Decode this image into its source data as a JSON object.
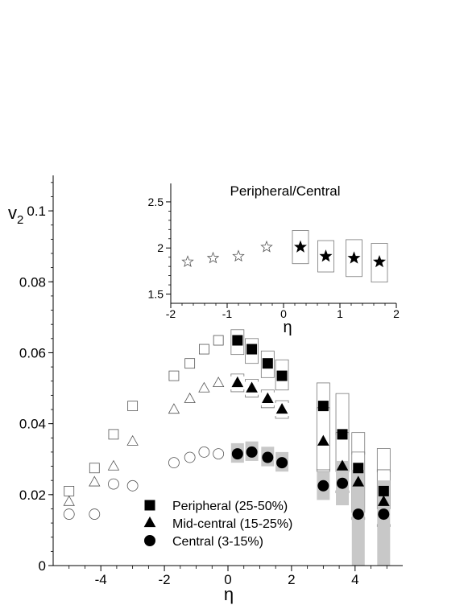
{
  "chart_data": {
    "main": {
      "type": "scatter",
      "xlabel": "η",
      "ylabel_base": "v",
      "ylabel_sub": "2",
      "xlim": [
        -5.5,
        5.5
      ],
      "ylim": [
        0,
        0.11
      ],
      "xticks": [
        -4,
        -2,
        0,
        2,
        4
      ],
      "xtick_labels": [
        "-4",
        "-2",
        "0",
        "2",
        "4"
      ],
      "yticks": [
        0,
        0.02,
        0.04,
        0.06,
        0.08,
        0.1
      ],
      "ytick_labels": [
        "0",
        "0.02",
        "0.04",
        "0.06",
        "0.08",
        "0.1"
      ],
      "grid": false,
      "legend_position": "lower-center",
      "series": [
        {
          "name": "Peripheral (25-50%)",
          "marker": "square",
          "filled_x": [
            0.3,
            0.75,
            1.25,
            1.7,
            3.0,
            3.6,
            4.1,
            4.9
          ],
          "filled_y": [
            0.0635,
            0.061,
            0.057,
            0.0535,
            0.045,
            0.037,
            0.0275,
            0.021
          ],
          "open_x": [
            -5.0,
            -4.2,
            -3.6,
            -3.0,
            -1.7,
            -1.2,
            -0.75,
            -0.3
          ],
          "open_y": [
            0.021,
            0.0275,
            0.037,
            0.045,
            0.0535,
            0.057,
            0.061,
            0.0635
          ],
          "sys_low": [
            0.0595,
            0.057,
            0.053,
            0.0495,
            0.027,
            0.0265,
            0.015,
            0.016
          ],
          "sys_high": [
            0.0665,
            0.064,
            0.0605,
            0.058,
            0.0515,
            0.0485,
            0.0375,
            0.033
          ],
          "sys_style": "open"
        },
        {
          "name": "Mid-central (15-25%)",
          "marker": "triangle",
          "filled_x": [
            0.3,
            0.75,
            1.25,
            1.7,
            3.0,
            3.6,
            4.1,
            4.9
          ],
          "filled_y": [
            0.0515,
            0.05,
            0.047,
            0.044,
            0.035,
            0.028,
            0.0235,
            0.018
          ],
          "open_x": [
            -5.0,
            -4.2,
            -3.6,
            -3.0,
            -1.7,
            -1.2,
            -0.75,
            -0.3
          ],
          "open_y": [
            0.018,
            0.0235,
            0.028,
            0.035,
            0.044,
            0.047,
            0.05,
            0.0515
          ],
          "sys_low": [
            0.049,
            0.0475,
            0.0445,
            0.0415,
            0.0265,
            0.0205,
            0.013,
            0.011
          ],
          "sys_high": [
            0.054,
            0.0525,
            0.0495,
            0.0465,
            0.0445,
            0.0375,
            0.032,
            0.027
          ],
          "sys_style": "bracket"
        },
        {
          "name": "Central (3-15%)",
          "marker": "circle",
          "filled_x": [
            0.3,
            0.75,
            1.25,
            1.7,
            3.0,
            3.6,
            4.1,
            4.9
          ],
          "filled_y": [
            0.0315,
            0.032,
            0.0305,
            0.029,
            0.0225,
            0.0232,
            0.0145,
            0.0145
          ],
          "open_x": [
            -5.0,
            -4.2,
            -3.6,
            -3.0,
            -1.7,
            -1.2,
            -0.75,
            -0.3
          ],
          "open_y": [
            0.0145,
            0.0145,
            0.023,
            0.0225,
            0.029,
            0.0305,
            0.032,
            0.0315
          ],
          "sys_low": [
            0.029,
            0.0295,
            0.028,
            0.0265,
            0.0185,
            0.017,
            0.0,
            0.0
          ],
          "sys_high": [
            0.0345,
            0.035,
            0.0335,
            0.032,
            0.0265,
            0.0295,
            0.027,
            0.024
          ],
          "sys_style": "gray"
        }
      ]
    },
    "inset": {
      "type": "scatter",
      "title": "Peripheral/Central",
      "xlabel": "η",
      "xlim": [
        -2,
        2
      ],
      "ylim": [
        1.4,
        2.7
      ],
      "xticks": [
        -2,
        -1,
        0,
        1,
        2
      ],
      "xtick_labels": [
        "-2",
        "-1",
        "0",
        "1",
        "2"
      ],
      "yticks": [
        1.5,
        2,
        2.5
      ],
      "ytick_labels": [
        "1.5",
        "2",
        "2.5"
      ],
      "grid": false,
      "series": [
        {
          "name": "",
          "marker": "star",
          "filled_x": [
            0.3,
            0.75,
            1.25,
            1.7
          ],
          "filled_y": [
            2.01,
            1.91,
            1.89,
            1.85
          ],
          "open_x": [
            -1.7,
            -1.25,
            -0.8,
            -0.3
          ],
          "open_y": [
            1.85,
            1.89,
            1.91,
            2.01
          ],
          "sys_low": [
            1.83,
            1.74,
            1.69,
            1.63
          ],
          "sys_high": [
            2.19,
            2.08,
            2.09,
            2.05
          ]
        }
      ]
    }
  }
}
